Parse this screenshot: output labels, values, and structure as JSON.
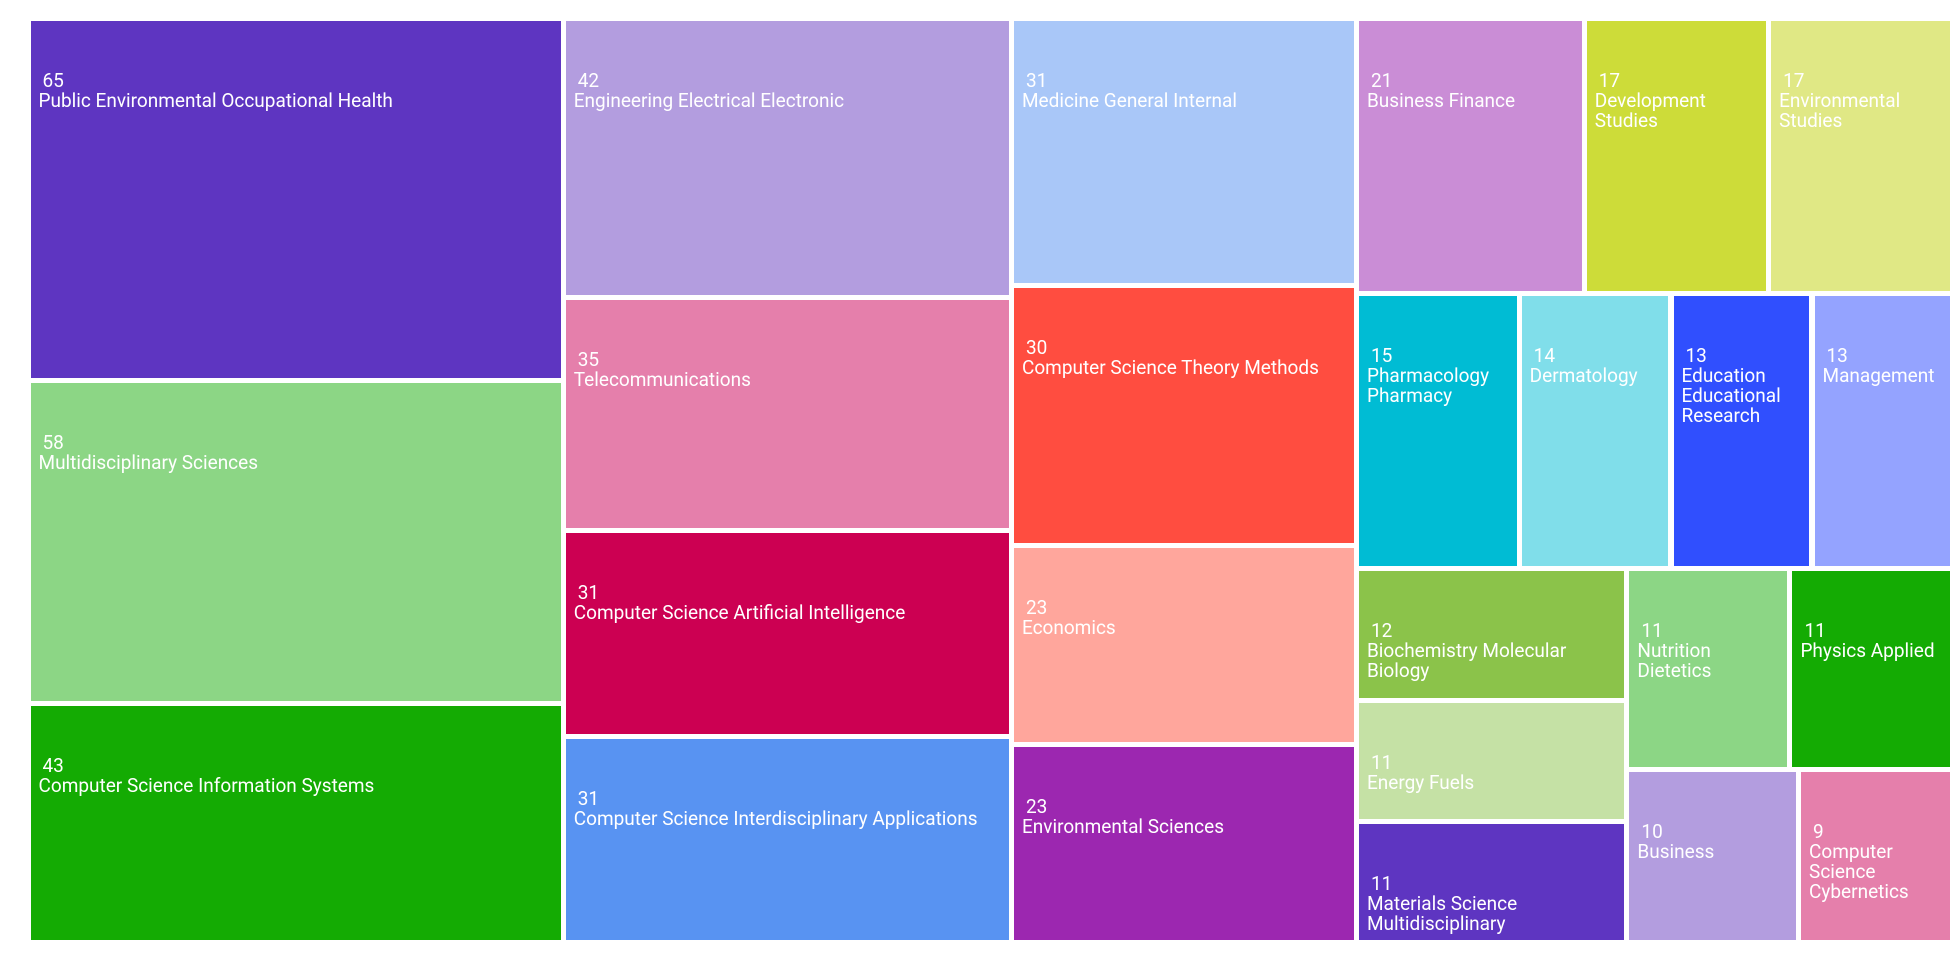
{
  "chart_data": {
    "type": "treemap",
    "categories": [
      "Public Environmental Occupational Health",
      "Multidisciplinary Sciences",
      "Computer Science Information Systems",
      "Engineering Electrical Electronic",
      "Telecommunications",
      "Computer Science Artificial Intelligence",
      "Computer Science Interdisciplinary Applications",
      "Medicine General Internal",
      "Computer Science Theory Methods",
      "Economics",
      "Environmental Sciences",
      "Business Finance",
      "Development Studies",
      "Environmental Studies",
      "Pharmacology Pharmacy",
      "Dermatology",
      "Education Educational Research",
      "Management",
      "Biochemistry Molecular Biology",
      "Energy Fuels",
      "Materials Science Multidisciplinary",
      "Nutrition Dietetics",
      "Physics Applied",
      "Business",
      "Computer Science Cybernetics"
    ],
    "values": [
      65,
      58,
      43,
      42,
      35,
      31,
      31,
      31,
      30,
      23,
      23,
      21,
      17,
      17,
      15,
      14,
      13,
      13,
      12,
      11,
      11,
      11,
      11,
      10,
      9
    ],
    "colors": [
      "#5e35c1",
      "#8cd685",
      "#14ab03",
      "#b39ddf",
      "#e57fab",
      "#cc0052",
      "#5893f2",
      "#a9c7f8",
      "#ff4d40",
      "#ffa69c",
      "#9c27b0",
      "#ca8dd6",
      "#cddc39",
      "#e0e885",
      "#00bcd4",
      "#80deea",
      "#304ffe",
      "#94a3ff",
      "#8bc34a",
      "#c5e1a5",
      "#5e35c1",
      "#8cd685",
      "#14ab03",
      "#b39ddf",
      "#e57fab"
    ]
  }
}
